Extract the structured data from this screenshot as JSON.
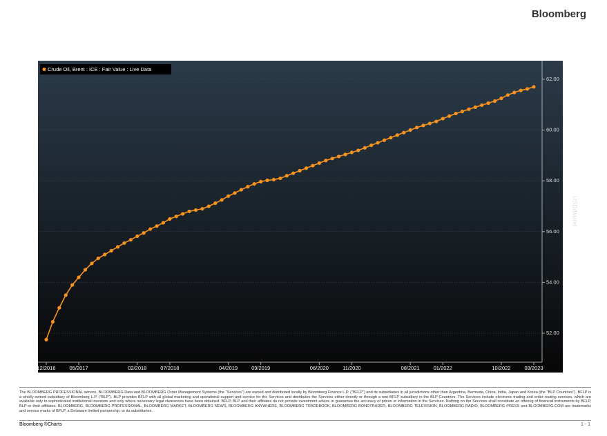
{
  "header": "Bloomberg",
  "chart_data": {
    "type": "line",
    "legend": "Crude Oil, Brent : ICE : Fair Value : Live Data",
    "y_label": "USD/barrel",
    "categories": [
      "12/2016",
      null,
      null,
      null,
      null,
      "05/2017",
      null,
      null,
      null,
      null,
      null,
      null,
      null,
      null,
      "02/2018",
      null,
      null,
      null,
      null,
      "07/2018",
      null,
      null,
      null,
      null,
      null,
      null,
      null,
      null,
      "04/2019",
      null,
      null,
      null,
      null,
      "09/2019",
      null,
      null,
      null,
      null,
      null,
      null,
      null,
      null,
      "06/2020",
      null,
      null,
      null,
      null,
      "11/2020",
      null,
      null,
      null,
      null,
      null,
      null,
      null,
      null,
      "08/2021",
      null,
      null,
      null,
      null,
      "01/2022",
      null,
      null,
      null,
      null,
      null,
      null,
      null,
      null,
      "10/2022",
      null,
      null,
      null,
      null,
      "03/2023"
    ],
    "series": [
      {
        "name": "Crude Oil, Brent : ICE : Fair Value : Live Data",
        "color": "#f7931e",
        "values": [
          51.75,
          52.45,
          53.0,
          53.5,
          53.9,
          54.2,
          54.5,
          54.75,
          54.95,
          55.1,
          55.25,
          55.4,
          55.55,
          55.68,
          55.82,
          55.95,
          56.1,
          56.22,
          56.35,
          56.5,
          56.6,
          56.7,
          56.8,
          56.85,
          56.9,
          57.0,
          57.12,
          57.25,
          57.4,
          57.52,
          57.65,
          57.77,
          57.88,
          57.97,
          58.02,
          58.05,
          58.1,
          58.2,
          58.3,
          58.4,
          58.5,
          58.6,
          58.7,
          58.8,
          58.88,
          58.96,
          59.04,
          59.12,
          59.2,
          59.3,
          59.4,
          59.5,
          59.6,
          59.7,
          59.8,
          59.9,
          60.0,
          60.1,
          60.18,
          60.26,
          60.34,
          60.45,
          60.55,
          60.65,
          60.73,
          60.82,
          60.9,
          60.98,
          61.06,
          61.14,
          61.25,
          61.38,
          61.48,
          61.56,
          61.62,
          61.7
        ]
      }
    ],
    "ylim": [
      50.86,
      62.73
    ],
    "yticks": [
      {
        "value": 52,
        "label": "52.00"
      },
      {
        "value": 54,
        "label": "54.00"
      },
      {
        "value": 56,
        "label": "56.00"
      },
      {
        "value": 58,
        "label": "58.00"
      },
      {
        "value": 60,
        "label": "60.00"
      },
      {
        "value": 62,
        "label": "62.00"
      }
    ],
    "grid": true
  },
  "disclaimer": "The BLOOMBERG PROFESSIONAL service, BLOOMBERG Data and BLOOMBERG Order Management Systems (the \"Services\") are owned and distributed locally by Bloomberg Finance L.P. (\"BFLP\") and its subsidiaries in all jurisdictions other than Argentina, Bermuda, China, India, Japan and Korea (the \"BLP Countries\"). BFLP is a wholly-owned subsidiary of Bloomberg L.P. (\"BLP\"). BLP provides BFLP with all global marketing and operational support and service for the Services and distributes the Services either directly or through a non-BFLP subsidiary in the BLP Countries. The Services include electronic trading and order-routing services, which are available only to sophisticated institutional investors and only where necessary legal clearances have been obtained. BFLP, BLP and their affiliates do not provide investment advice or guarantee the accuracy of prices or information in the Services. Nothing on the Services shall constitute an offering of financial instruments by BFLP, BLP or their affiliates. BLOOMBERG, BLOOMBERG PROFESSIONAL, BLOOMBERG MARKET, BLOOMBERG NEWS, BLOOMBERG ANYWHERE, BLOOMBERG TRADEBOOK, BLOOMBERG BONDTRADER, BLOOMBERG TELEVISION, BLOOMBERG RADIO, BLOOMBERG PRESS and BLOOMBERG.COM are trademarks and service marks of BFLP, a Delaware limited partnership, or its subsidiaries.",
  "footer": "Bloomberg ®Charts",
  "page": "1 - 1"
}
